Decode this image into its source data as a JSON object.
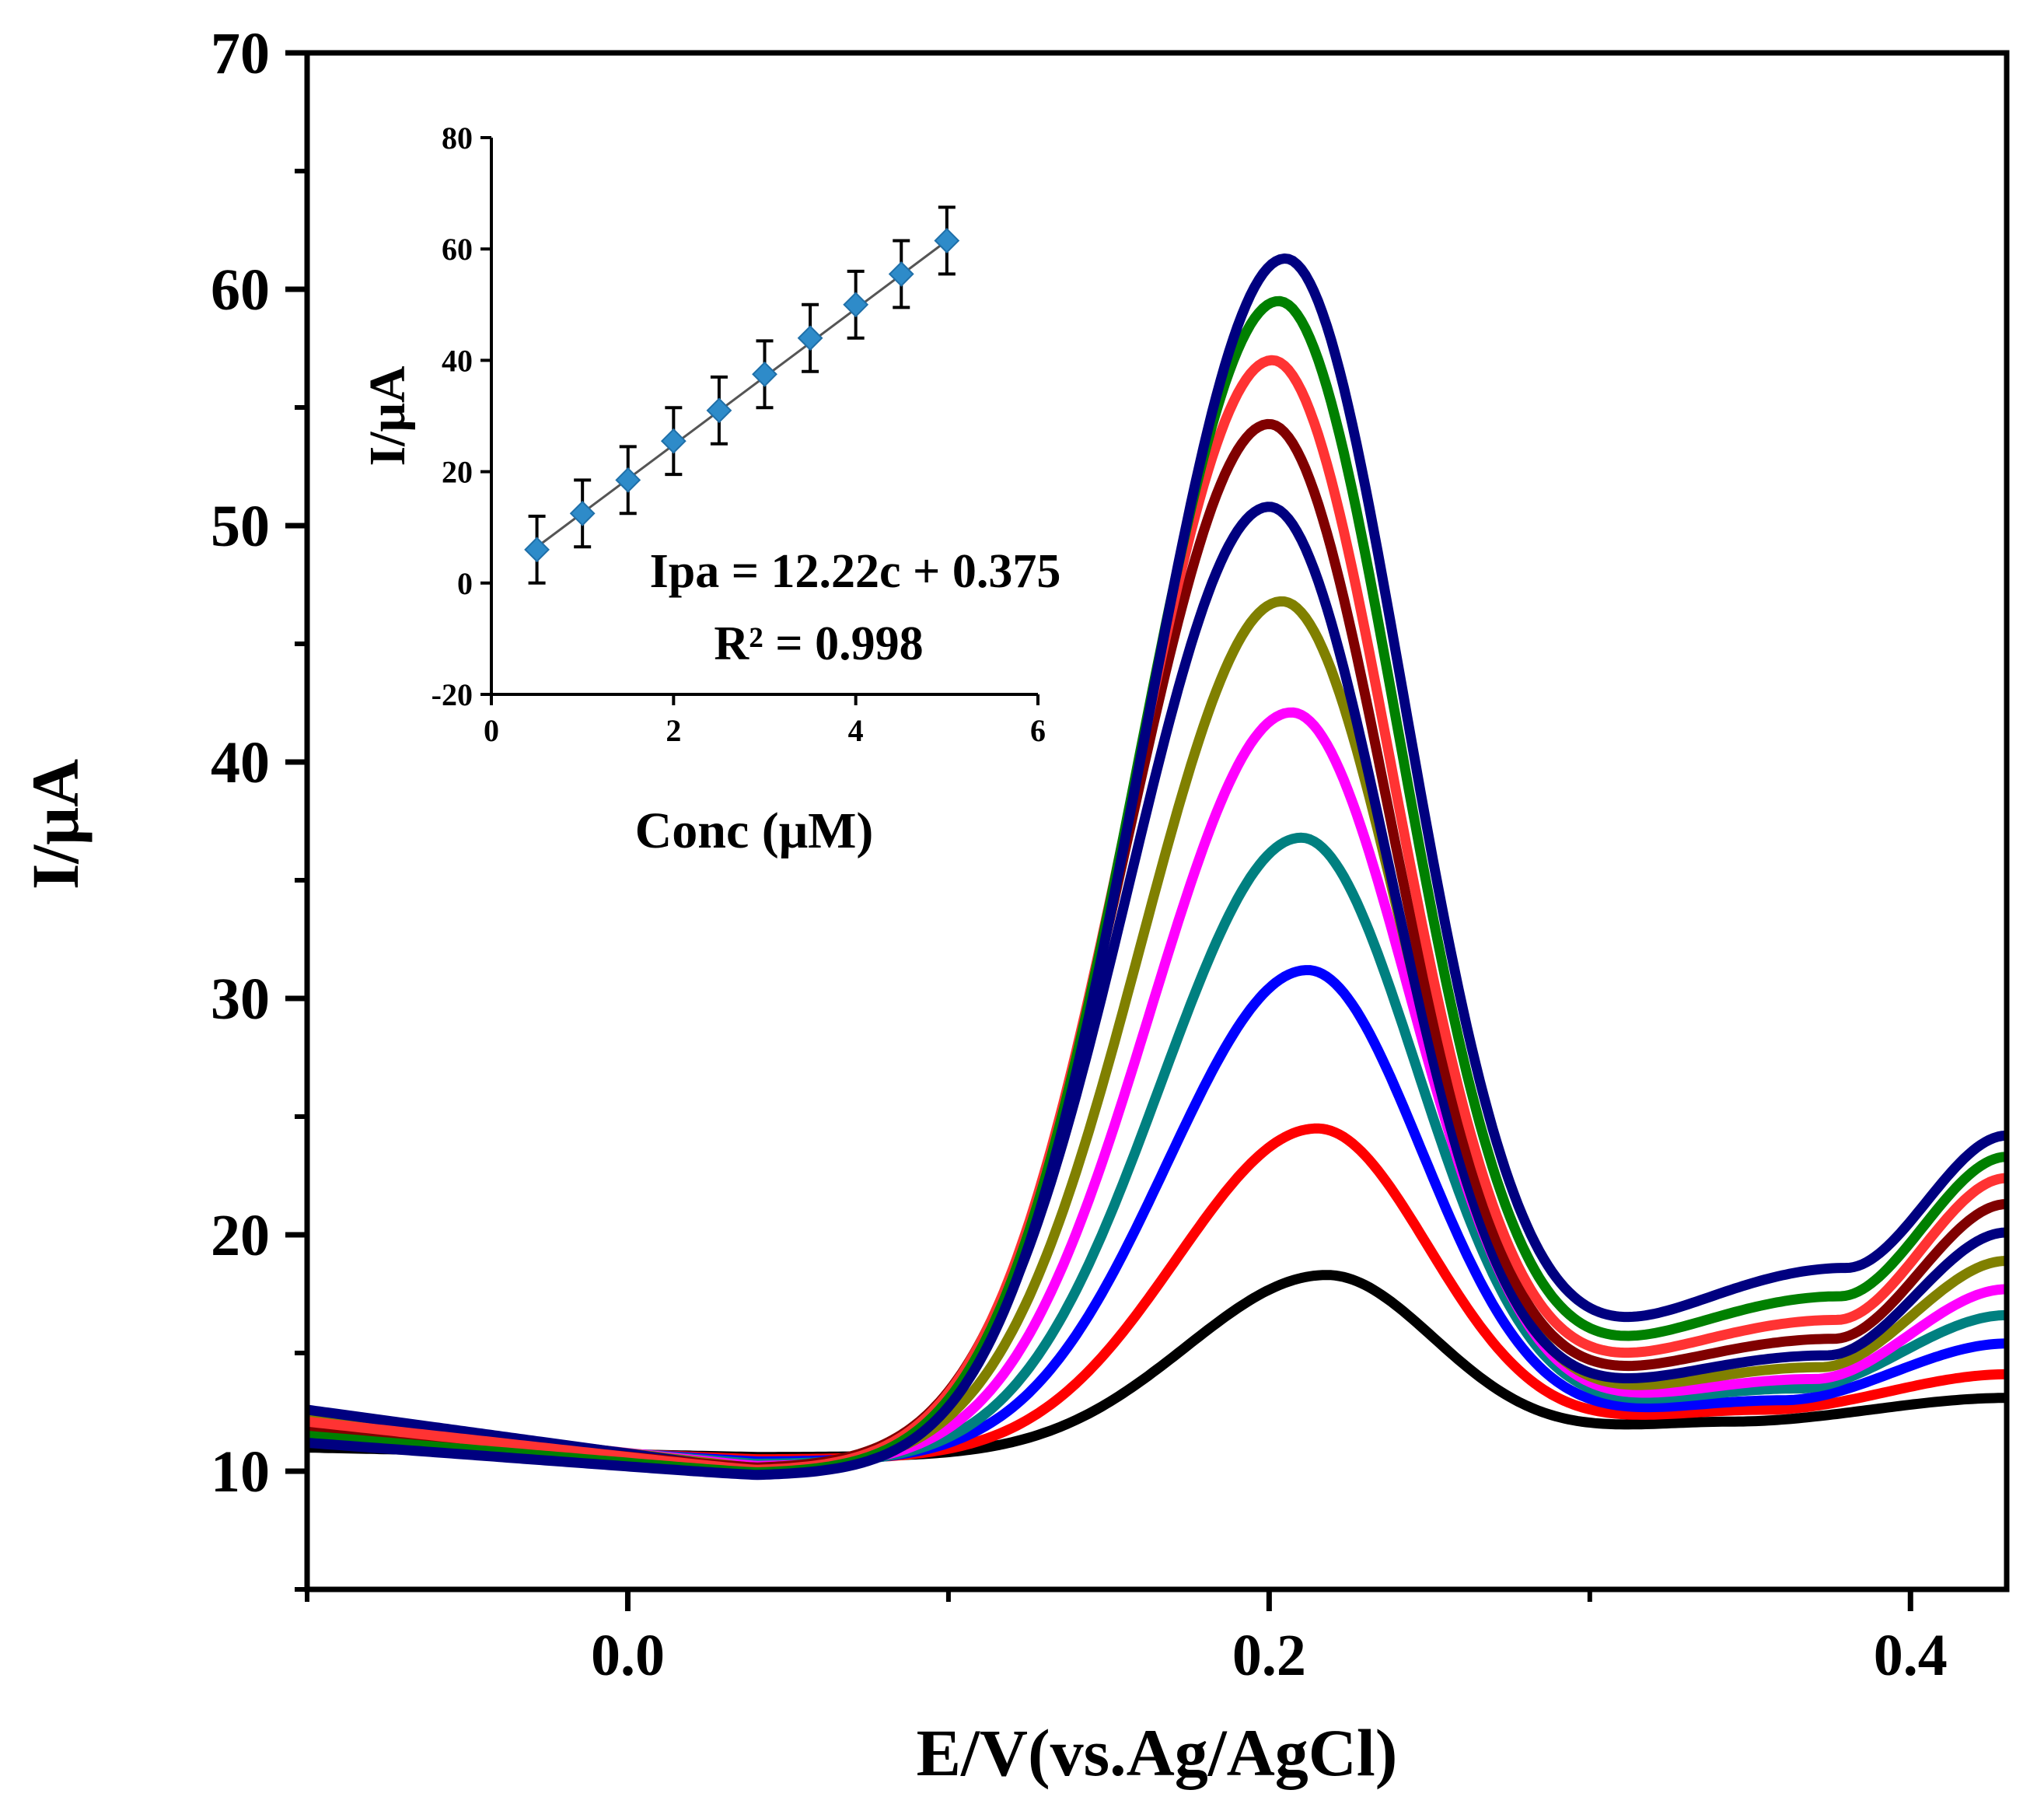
{
  "chart_data": [
    {
      "type": "line",
      "xlabel": "E/V(vs.Ag/AgCl)",
      "ylabel": "I/μA",
      "xlim": [
        -0.1,
        0.43
      ],
      "ylim": [
        5,
        70
      ],
      "xticks": [
        0.0,
        0.2,
        0.4
      ],
      "xtick_labels": [
        "0.0",
        "0.2",
        "0.4"
      ],
      "yticks": [
        10,
        20,
        30,
        40,
        50,
        60,
        70
      ],
      "ytick_labels": [
        "10",
        "20",
        "30",
        "40",
        "50",
        "60",
        "70"
      ],
      "grid": false,
      "legend": "none",
      "series": [
        {
          "color": "#000000",
          "start": 11.0,
          "mid": 10.6,
          "peak_e": 0.218,
          "peak_i": 18.3,
          "valley_e": 0.345,
          "valley_i": 12.1,
          "end_i": 13.1
        },
        {
          "color": "#ff0000",
          "start": 11.3,
          "mid": 10.5,
          "peak_e": 0.215,
          "peak_i": 24.5,
          "valley_e": 0.355,
          "valley_i": 12.6,
          "end_i": 14.1
        },
        {
          "color": "#0000ff",
          "start": 11.6,
          "mid": 10.4,
          "peak_e": 0.212,
          "peak_i": 31.2,
          "valley_e": 0.36,
          "valley_i": 13.0,
          "end_i": 15.4
        },
        {
          "color": "#008080",
          "start": 11.9,
          "mid": 10.3,
          "peak_e": 0.21,
          "peak_i": 36.8,
          "valley_e": 0.365,
          "valley_i": 13.5,
          "end_i": 16.6
        },
        {
          "color": "#ff00ff",
          "start": 12.2,
          "mid": 10.2,
          "peak_e": 0.207,
          "peak_i": 42.1,
          "valley_e": 0.37,
          "valley_i": 13.9,
          "end_i": 17.7
        },
        {
          "color": "#808000",
          "start": 12.4,
          "mid": 10.1,
          "peak_e": 0.204,
          "peak_i": 46.8,
          "valley_e": 0.372,
          "valley_i": 14.4,
          "end_i": 18.9
        },
        {
          "color": "#000080",
          "start": 12.6,
          "mid": 10.0,
          "peak_e": 0.2,
          "peak_i": 50.8,
          "valley_e": 0.374,
          "valley_i": 14.9,
          "end_i": 20.1
        },
        {
          "color": "#800000",
          "start": 11.9,
          "mid": 10.1,
          "peak_e": 0.2,
          "peak_i": 54.3,
          "valley_e": 0.376,
          "valley_i": 15.6,
          "end_i": 21.3
        },
        {
          "color": "#ff3333",
          "start": 12.1,
          "mid": 10.0,
          "peak_e": 0.201,
          "peak_i": 57.0,
          "valley_e": 0.377,
          "valley_i": 16.4,
          "end_i": 22.4
        },
        {
          "color": "#008000",
          "start": 11.5,
          "mid": 9.9,
          "peak_e": 0.203,
          "peak_i": 59.5,
          "valley_e": 0.378,
          "valley_i": 17.4,
          "end_i": 23.3
        },
        {
          "color": "#000080",
          "start": 11.2,
          "mid": 9.8,
          "peak_e": 0.205,
          "peak_i": 61.3,
          "valley_e": 0.38,
          "valley_i": 18.6,
          "end_i": 24.2
        }
      ]
    },
    {
      "type": "scatter",
      "xlabel": "Conc (μM)",
      "ylabel": "I/μA",
      "xlim": [
        0,
        6
      ],
      "ylim": [
        -20,
        80
      ],
      "xticks": [
        0,
        2,
        4,
        6
      ],
      "xtick_labels": [
        "0",
        "2",
        "4",
        "6"
      ],
      "yticks": [
        -20,
        0,
        20,
        40,
        60,
        80
      ],
      "ytick_labels": [
        "-20",
        "0",
        "20",
        "40",
        "60",
        "80"
      ],
      "x": [
        0.5,
        1.0,
        1.5,
        2.0,
        2.5,
        3.0,
        3.5,
        4.0,
        4.5,
        5.0
      ],
      "y": [
        6,
        12.5,
        18.5,
        25.5,
        31,
        37.5,
        44,
        50,
        55.5,
        61.5
      ],
      "error": [
        6,
        6,
        6,
        6,
        6,
        6,
        6,
        6,
        6,
        6
      ],
      "fit_line": {
        "x": [
          0.5,
          5.0
        ],
        "y": [
          6.485,
          61.475
        ]
      },
      "marker_color": "#2e8bc9",
      "equation": "Ipa = 12.22c + 0.375",
      "r2": "R² = 0.998"
    }
  ]
}
